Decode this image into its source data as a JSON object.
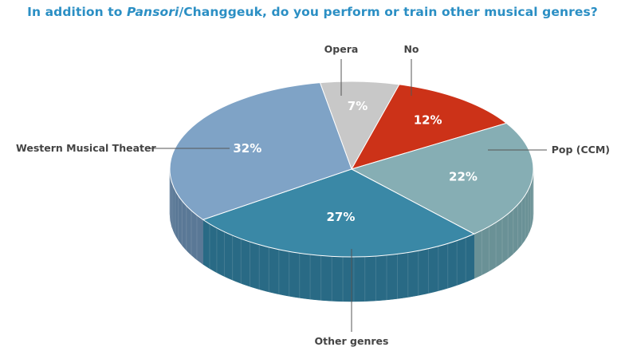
{
  "title_before": "In addition to ",
  "title_italic": "Pansori",
  "title_after": "/Changgeuk, do you perform or train other musical genres?",
  "chart_data": {
    "type": "pie",
    "title": "In addition to Pansori/Changgeuk, do you perform or train other musical genres?",
    "slices": [
      {
        "label": "Opera",
        "value": 7,
        "display": "7%",
        "color": "#c8c8c8",
        "side_color": "#a3a3a3"
      },
      {
        "label": "No",
        "value": 12,
        "display": "12%",
        "color": "#cc3218",
        "side_color": "#a32812"
      },
      {
        "label": "Pop (CCM)",
        "value": 22,
        "display": "22%",
        "color": "#86aeb4",
        "side_color": "#6a9196"
      },
      {
        "label": "Other genres",
        "value": 27,
        "display": "27%",
        "color": "#3a88a6",
        "side_color": "#296a85"
      },
      {
        "label": "Western Musical Theater",
        "value": 32,
        "display": "32%",
        "color": "#7fa3c6",
        "side_color": "#5a7896"
      }
    ],
    "legend": "none",
    "style": "3d-tilted"
  }
}
